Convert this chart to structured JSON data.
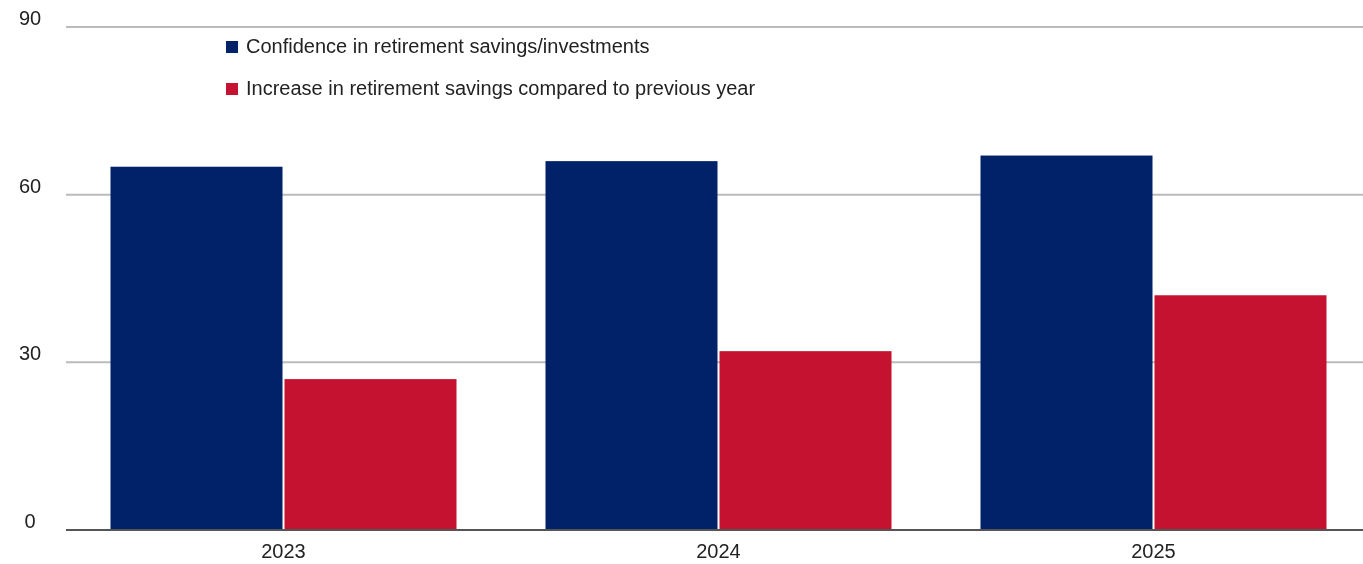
{
  "chart_data": {
    "type": "bar",
    "categories": [
      "2023",
      "2024",
      "2025"
    ],
    "series": [
      {
        "name": "Confidence in retirement savings/investments",
        "color": "#012169",
        "values": [
          65,
          66,
          67
        ]
      },
      {
        "name": "Increase in retirement savings compared to previous year",
        "color": "#c41230",
        "values": [
          27,
          32,
          42
        ]
      }
    ],
    "ylim": [
      0,
      90
    ],
    "yticks": [
      0,
      30,
      60,
      90
    ],
    "grid": "y",
    "legend": "top left"
  }
}
